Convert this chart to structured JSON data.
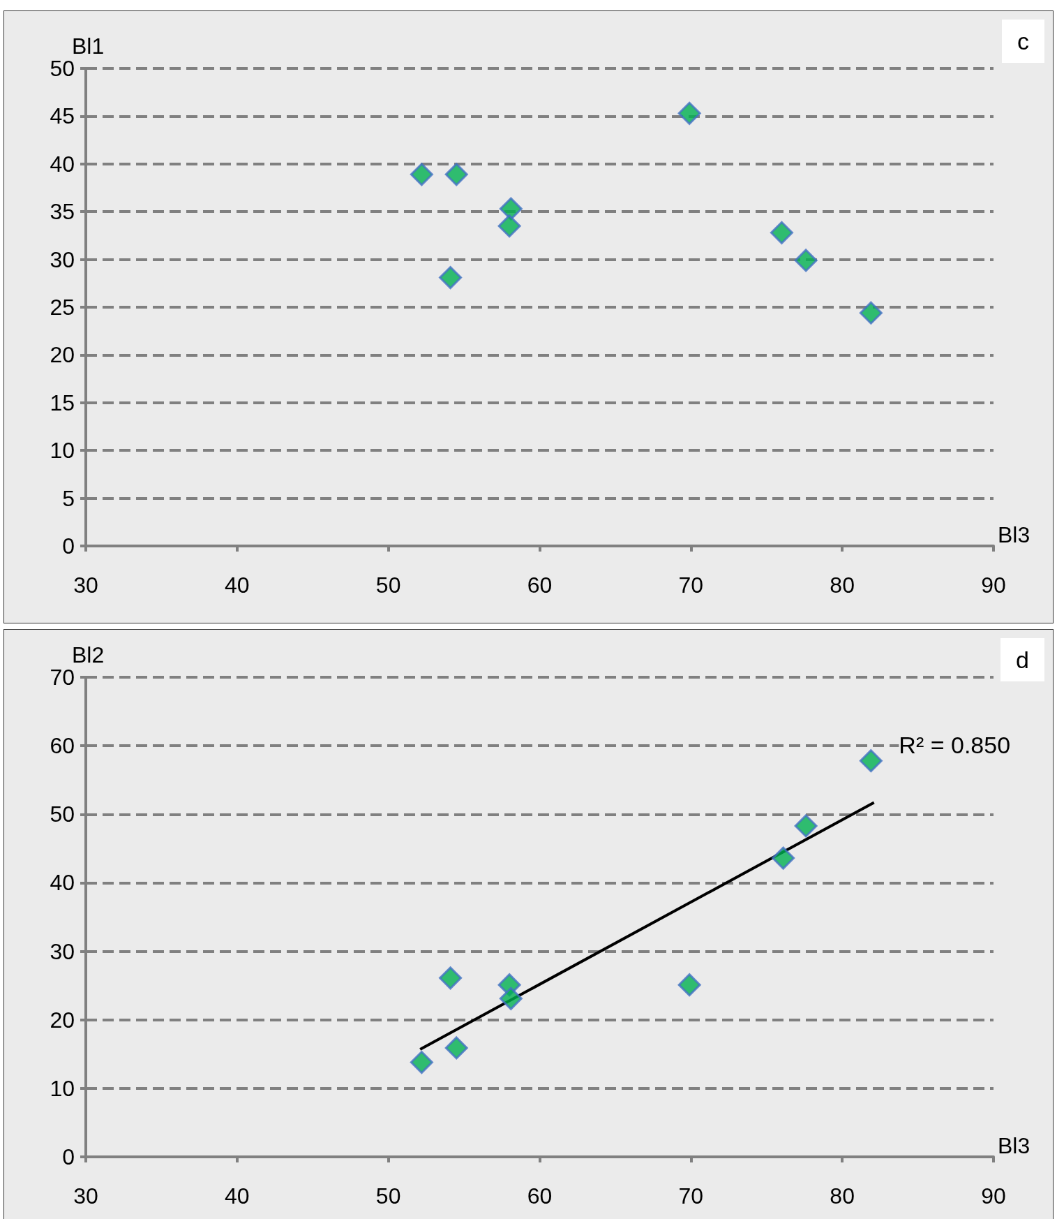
{
  "chart_data": [
    {
      "type": "scatter",
      "xlabel": "Bl3",
      "ylabel": "Bl1",
      "annotations": [
        "c"
      ],
      "marker": "diamond",
      "grid": "y",
      "line_style": "dashed",
      "xlim": [
        30,
        90
      ],
      "xticks": [
        30,
        40,
        50,
        60,
        70,
        80,
        90
      ],
      "ylim": [
        0,
        50
      ],
      "yticks": [
        0,
        5,
        10,
        15,
        20,
        25,
        30,
        35,
        40,
        45,
        50
      ],
      "series": [
        {
          "color": "#00b050",
          "x": [
            52.2,
            54.5,
            58.1,
            58,
            54.1,
            69.9,
            76,
            77.6,
            81.9
          ],
          "values": [
            38.9,
            38.9,
            35.3,
            33.5,
            28.1,
            45.3,
            32.8,
            29.9,
            24.4
          ]
        }
      ]
    },
    {
      "type": "scatter",
      "xlabel": "Bl3",
      "ylabel": "Bl2",
      "annotations": [
        "d",
        {
          "text": "R² = 0.850",
          "x": 81.9,
          "y": 57.8
        }
      ],
      "marker": "diamond",
      "grid": "y",
      "line_style": "dashed",
      "xlim": [
        30,
        90
      ],
      "xticks": [
        30,
        40,
        50,
        60,
        70,
        80,
        90
      ],
      "ylim": [
        0,
        70
      ],
      "yticks": [
        0,
        10,
        20,
        30,
        40,
        50,
        60,
        70
      ],
      "series": [
        {
          "color": "#00b050",
          "x": [
            52.2,
            54.5,
            54.1,
            58,
            58.1,
            69.9,
            76.1,
            77.6,
            81.9
          ],
          "values": [
            13.8,
            15.9,
            26.1,
            25.1,
            23.1,
            25.1,
            43.6,
            48.3,
            57.8
          ]
        },
        {
          "type": "line",
          "color": "#000000",
          "marker": "none",
          "line_style": "solid",
          "x": [
            52.1,
            82.1
          ],
          "values": [
            15.7,
            51.7
          ]
        }
      ]
    }
  ]
}
